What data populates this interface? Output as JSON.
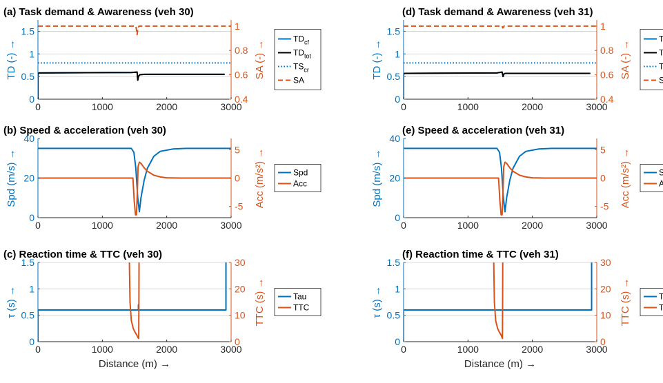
{
  "colors": {
    "blue": "#0072BD",
    "orange": "#D95319",
    "black": "#000000",
    "grid": "#cfcfcf"
  },
  "xlabel": "Distance (m) →",
  "chart_data": [
    {
      "type": "line",
      "title": "(a) Task demand & Awareness (veh 30)",
      "xlim": [
        0,
        3000
      ],
      "xticks": [
        0,
        1000,
        2000,
        3000
      ],
      "ylabel_left": "TD (-) →",
      "ylim_left": [
        0,
        1.75
      ],
      "yticks_left": [
        0,
        0.5,
        1,
        1.5
      ],
      "ylabel_right": "SA (-) →",
      "ylim_right": [
        0.4,
        1.05
      ],
      "yticks_right": [
        0.4,
        0.6,
        0.8,
        1
      ],
      "grid": true,
      "legend_position": "outside-right",
      "series": [
        {
          "name": "TD",
          "sub": "cf",
          "axis": "left",
          "color": "#0072BD",
          "dash": "solid",
          "x": [
            0,
            0,
            15,
            1450,
            1540,
            1550,
            1560,
            1580,
            1650,
            1800,
            2900
          ],
          "y": [
            0,
            0.55,
            0.58,
            0.59,
            0.6,
            0.42,
            0.5,
            0.54,
            0.55,
            0.55,
            0.55
          ]
        },
        {
          "name": "TD",
          "sub": "tot",
          "axis": "left",
          "color": "#000000",
          "dash": "solid",
          "x": [
            0,
            0,
            15,
            1450,
            1540,
            1550,
            1560,
            1580,
            1650,
            1800,
            2900
          ],
          "y": [
            0,
            0.55,
            0.58,
            0.59,
            0.6,
            0.42,
            0.5,
            0.54,
            0.55,
            0.55,
            0.55
          ]
        },
        {
          "name": "TS",
          "sub": "cr",
          "axis": "left",
          "color": "#0072BD",
          "dash": "dotted",
          "x": [
            0,
            3000
          ],
          "y": [
            0.8,
            0.8
          ]
        },
        {
          "name": "SA",
          "sub": "",
          "axis": "right",
          "color": "#D95319",
          "dash": "dashed",
          "x": [
            0,
            1520,
            1530,
            1540,
            1550,
            1560,
            1570,
            3000
          ],
          "y": [
            1,
            1,
            0.97,
            0.93,
            0.97,
            0.99,
            1,
            1
          ]
        }
      ]
    },
    {
      "type": "line",
      "title": "(b) Speed & acceleration (veh 30)",
      "xlim": [
        0,
        3000
      ],
      "xticks": [
        0,
        1000,
        2000,
        3000
      ],
      "ylabel_left": "Spd (m/s) →",
      "ylim_left": [
        0,
        40
      ],
      "yticks_left": [
        0,
        20,
        40
      ],
      "ylabel_right": "Acc (m/s²) →",
      "ylim_right": [
        -7,
        7
      ],
      "yticks_right": [
        -5,
        0,
        5
      ],
      "grid": false,
      "legend_position": "outside-right",
      "series": [
        {
          "name": "Spd",
          "sub": "",
          "axis": "left",
          "color": "#0072BD",
          "dash": "solid",
          "x": [
            0,
            1450,
            1490,
            1520,
            1550,
            1575,
            1600,
            1650,
            1700,
            1800,
            1900,
            2100,
            2300,
            3000
          ],
          "y": [
            35,
            35,
            33,
            25,
            10,
            3,
            10,
            19,
            25,
            31,
            33.5,
            34.7,
            35,
            35
          ]
        },
        {
          "name": "Acc",
          "sub": "",
          "axis": "right",
          "color": "#D95319",
          "dash": "solid",
          "x": [
            0,
            1475,
            1495,
            1515,
            1530,
            1545,
            1555,
            1575,
            1600,
            1650,
            1700,
            1800,
            1900,
            2000,
            2200,
            3000
          ],
          "y": [
            0,
            0,
            -4,
            -6.5,
            -6.5,
            -2,
            2,
            2.8,
            2.6,
            1.8,
            1.2,
            0.5,
            0.2,
            0.05,
            0,
            0
          ]
        }
      ]
    },
    {
      "type": "line",
      "title": "(c) Reaction time & TTC (veh 30)",
      "xlim": [
        0,
        3000
      ],
      "xticks": [
        0,
        1000,
        2000,
        3000
      ],
      "ylabel_left": "τ (s) →",
      "ylim_left": [
        0,
        1.5
      ],
      "yticks_left": [
        0,
        0.5,
        1,
        1.5
      ],
      "ylabel_right": "TTC (s) →",
      "ylim_right": [
        0,
        30
      ],
      "yticks_right": [
        0,
        10,
        20,
        30
      ],
      "grid": true,
      "legend_position": "outside-right",
      "series": [
        {
          "name": "Tau",
          "sub": "",
          "axis": "left",
          "color": "#0072BD",
          "dash": "solid",
          "x": [
            0,
            0,
            1560,
            1560,
            1565,
            1565,
            2920,
            2920
          ],
          "y": [
            0,
            0.6,
            0.6,
            0.7,
            0.7,
            0.6,
            0.6,
            1.5
          ]
        },
        {
          "name": "TTC",
          "sub": "",
          "axis": "right",
          "color": "#D95319",
          "dash": "solid",
          "x": [
            1420,
            1430,
            1450,
            1480,
            1510,
            1535,
            1555,
            1565,
            1568,
            1570
          ],
          "y": [
            30,
            15,
            8,
            5,
            3.5,
            2.5,
            1.5,
            1.2,
            15,
            30
          ]
        }
      ]
    },
    {
      "type": "line",
      "title": "(d) Task demand & Awareness (veh 31)",
      "xlim": [
        0,
        3000
      ],
      "xticks": [
        0,
        1000,
        2000,
        3000
      ],
      "ylabel_left": "TD (-) →",
      "ylim_left": [
        0,
        1.75
      ],
      "yticks_left": [
        0,
        0.5,
        1,
        1.5
      ],
      "ylabel_right": "SA (-) →",
      "ylim_right": [
        0.4,
        1.05
      ],
      "yticks_right": [
        0.4,
        0.6,
        0.8,
        1
      ],
      "grid": true,
      "legend_position": "outside-right",
      "series": [
        {
          "name": "TD",
          "sub": "cf",
          "axis": "left",
          "color": "#0072BD",
          "dash": "solid",
          "x": [
            0,
            0,
            15,
            1450,
            1530,
            1545,
            1555,
            1575,
            1650,
            1800,
            2900
          ],
          "y": [
            0,
            0.55,
            0.57,
            0.58,
            0.6,
            0.5,
            0.55,
            0.57,
            0.57,
            0.57,
            0.57
          ]
        },
        {
          "name": "TD",
          "sub": "tot",
          "axis": "left",
          "color": "#000000",
          "dash": "solid",
          "x": [
            0,
            0,
            15,
            1450,
            1530,
            1545,
            1555,
            1575,
            1650,
            1800,
            2900
          ],
          "y": [
            0,
            0.55,
            0.57,
            0.58,
            0.6,
            0.5,
            0.55,
            0.57,
            0.57,
            0.57,
            0.57
          ]
        },
        {
          "name": "TS",
          "sub": "cr",
          "axis": "left",
          "color": "#0072BD",
          "dash": "dotted",
          "x": [
            0,
            3000
          ],
          "y": [
            0.8,
            0.8
          ]
        },
        {
          "name": "SA",
          "sub": "",
          "axis": "right",
          "color": "#D95319",
          "dash": "dashed",
          "x": [
            0,
            1530,
            1540,
            1550,
            1560,
            3000
          ],
          "y": [
            1,
            1,
            0.985,
            0.99,
            1,
            1
          ]
        }
      ]
    },
    {
      "type": "line",
      "title": "(e) Speed & acceleration (veh 31)",
      "xlim": [
        0,
        3000
      ],
      "xticks": [
        0,
        1000,
        2000,
        3000
      ],
      "ylabel_left": "Spd (m/s) →",
      "ylim_left": [
        0,
        40
      ],
      "yticks_left": [
        0,
        20,
        40
      ],
      "ylabel_right": "Acc (m/s²) →",
      "ylim_right": [
        -7,
        7
      ],
      "yticks_right": [
        -5,
        0,
        5
      ],
      "grid": false,
      "legend_position": "outside-right",
      "series": [
        {
          "name": "Spd",
          "sub": "",
          "axis": "left",
          "color": "#0072BD",
          "dash": "solid",
          "x": [
            0,
            1450,
            1490,
            1520,
            1550,
            1575,
            1600,
            1650,
            1700,
            1800,
            1900,
            2100,
            2300,
            3000
          ],
          "y": [
            35,
            35,
            33,
            25,
            10,
            3,
            10,
            19,
            25,
            31,
            33.5,
            34.7,
            35,
            35
          ]
        },
        {
          "name": "Acc",
          "sub": "",
          "axis": "right",
          "color": "#D95319",
          "dash": "solid",
          "x": [
            0,
            1475,
            1495,
            1515,
            1530,
            1545,
            1555,
            1575,
            1600,
            1650,
            1700,
            1800,
            1900,
            2000,
            2200,
            3000
          ],
          "y": [
            0,
            0,
            -4,
            -6.5,
            -6.5,
            -2,
            2,
            2.8,
            2.6,
            1.8,
            1.2,
            0.5,
            0.2,
            0.05,
            0,
            0
          ]
        }
      ]
    },
    {
      "type": "line",
      "title": "(f) Reaction time & TTC (veh 31)",
      "xlim": [
        0,
        3000
      ],
      "xticks": [
        0,
        1000,
        2000,
        3000
      ],
      "ylabel_left": "τ (s) →",
      "ylim_left": [
        0,
        1.5
      ],
      "yticks_left": [
        0,
        0.5,
        1,
        1.5
      ],
      "ylabel_right": "TTC (s) →",
      "ylim_right": [
        0,
        30
      ],
      "yticks_right": [
        0,
        10,
        20,
        30
      ],
      "grid": true,
      "legend_position": "outside-right",
      "series": [
        {
          "name": "Tau",
          "sub": "",
          "axis": "left",
          "color": "#0072BD",
          "dash": "solid",
          "x": [
            0,
            0,
            2920,
            2920
          ],
          "y": [
            0,
            0.6,
            0.6,
            1.5
          ]
        },
        {
          "name": "TTC",
          "sub": "",
          "axis": "right",
          "color": "#D95319",
          "dash": "solid",
          "x": [
            1400,
            1410,
            1430,
            1460,
            1490,
            1515,
            1530,
            1535,
            1538,
            1540
          ],
          "y": [
            30,
            15,
            8,
            5,
            3.5,
            2.5,
            1.5,
            1.2,
            15,
            30
          ]
        }
      ]
    }
  ]
}
